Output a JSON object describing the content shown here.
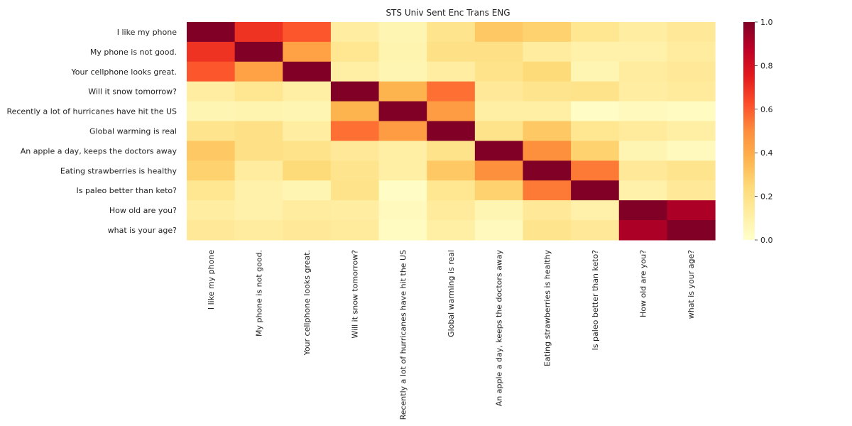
{
  "chart_data": {
    "type": "heatmap",
    "title": "STS Univ Sent Enc Trans ENG",
    "xlabel": "",
    "ylabel": "",
    "labels": [
      "I like my phone",
      "My phone is not good.",
      "Your cellphone looks great.",
      "Will it snow tomorrow?",
      "Recently a lot of hurricanes have hit the US",
      "Global warming is real",
      "An apple a day, keeps the doctors away",
      "Eating strawberries is healthy",
      "Is paleo better than keto?",
      "How old are you?",
      "what is your age?"
    ],
    "matrix": [
      [
        1.0,
        0.69,
        0.61,
        0.12,
        0.07,
        0.18,
        0.3,
        0.27,
        0.17,
        0.12,
        0.15
      ],
      [
        0.69,
        1.0,
        0.43,
        0.17,
        0.08,
        0.2,
        0.2,
        0.13,
        0.1,
        0.1,
        0.13
      ],
      [
        0.61,
        0.43,
        1.0,
        0.11,
        0.07,
        0.12,
        0.19,
        0.24,
        0.07,
        0.13,
        0.15
      ],
      [
        0.12,
        0.17,
        0.11,
        1.0,
        0.37,
        0.56,
        0.15,
        0.18,
        0.19,
        0.12,
        0.14
      ],
      [
        0.07,
        0.08,
        0.07,
        0.37,
        1.0,
        0.45,
        0.11,
        0.11,
        0.02,
        0.04,
        0.03
      ],
      [
        0.18,
        0.2,
        0.12,
        0.56,
        0.45,
        1.0,
        0.19,
        0.3,
        0.17,
        0.14,
        0.11
      ],
      [
        0.3,
        0.2,
        0.19,
        0.15,
        0.11,
        0.19,
        1.0,
        0.49,
        0.27,
        0.07,
        0.04
      ],
      [
        0.27,
        0.13,
        0.24,
        0.18,
        0.11,
        0.3,
        0.49,
        1.0,
        0.54,
        0.15,
        0.18
      ],
      [
        0.17,
        0.1,
        0.07,
        0.19,
        0.02,
        0.17,
        0.27,
        0.54,
        1.0,
        0.1,
        0.15
      ],
      [
        0.12,
        0.1,
        0.13,
        0.12,
        0.04,
        0.14,
        0.07,
        0.15,
        0.1,
        1.0,
        0.91
      ],
      [
        0.15,
        0.13,
        0.15,
        0.14,
        0.03,
        0.11,
        0.04,
        0.18,
        0.15,
        0.91,
        1.0
      ]
    ],
    "colorbar": {
      "range": [
        0.0,
        1.0
      ],
      "ticks": [
        "0.0",
        "0.2",
        "0.4",
        "0.6",
        "0.8",
        "1.0"
      ],
      "colormap": "YlOrRd",
      "stops": [
        "#ffffcc",
        "#ffeda0",
        "#fed976",
        "#feb24c",
        "#fd8d3c",
        "#fc4e2a",
        "#e31a1c",
        "#bd0026",
        "#800026"
      ]
    },
    "grid": false
  }
}
